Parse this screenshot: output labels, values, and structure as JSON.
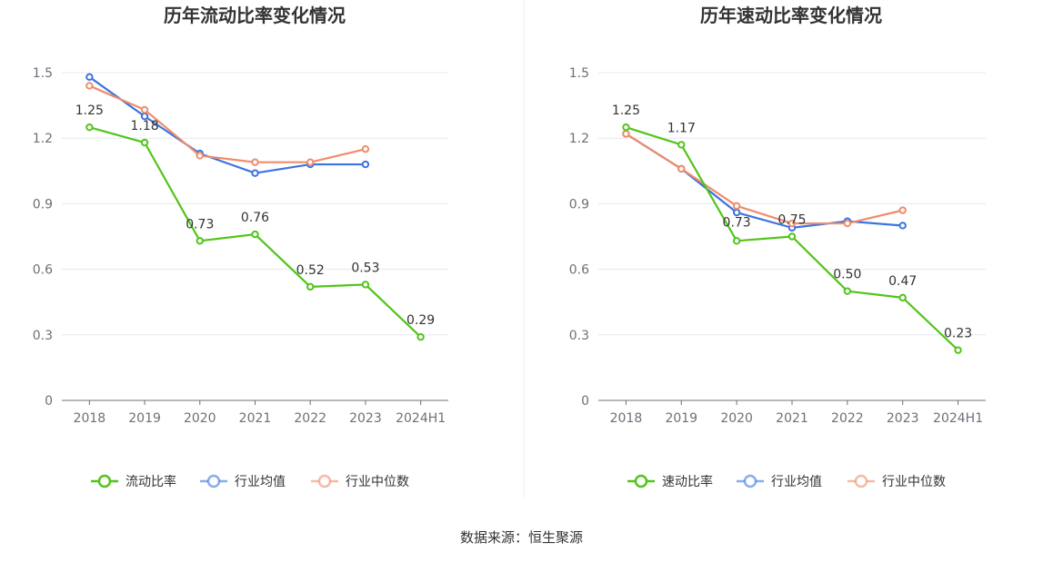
{
  "colors": {
    "company": "#52c41a",
    "industry_avg": "#3b74e0",
    "industry_median": "#f08c6a",
    "grid": "#e6e8f0",
    "axis": "#6e7079",
    "divider": "#eeeeee"
  },
  "source_text": "数据来源：恒生聚源",
  "chart_data": [
    {
      "type": "line",
      "title": "历年流动比率变化情况",
      "categories": [
        "2018",
        "2019",
        "2020",
        "2021",
        "2022",
        "2023",
        "2024H1"
      ],
      "ylim": [
        0,
        1.5
      ],
      "yticks": [
        "0",
        "0.3",
        "0.6",
        "0.9",
        "1.2",
        "1.5"
      ],
      "grid": true,
      "legend_position": "bottom",
      "series": [
        {
          "name": "流动比率",
          "key": "company",
          "values": [
            1.25,
            1.18,
            0.73,
            0.76,
            0.52,
            0.53,
            0.29
          ],
          "labels": [
            "1.25",
            "1.18",
            "0.73",
            "0.76",
            "0.52",
            "0.53",
            "0.29"
          ]
        },
        {
          "name": "行业均值",
          "key": "industry_avg",
          "values": [
            1.48,
            1.3,
            1.13,
            1.04,
            1.08,
            1.08,
            null
          ]
        },
        {
          "name": "行业中位数",
          "key": "industry_median",
          "values": [
            1.44,
            1.33,
            1.12,
            1.09,
            1.09,
            1.15,
            null
          ]
        }
      ]
    },
    {
      "type": "line",
      "title": "历年速动比率变化情况",
      "categories": [
        "2018",
        "2019",
        "2020",
        "2021",
        "2022",
        "2023",
        "2024H1"
      ],
      "ylim": [
        0,
        1.5
      ],
      "yticks": [
        "0",
        "0.3",
        "0.6",
        "0.9",
        "1.2",
        "1.5"
      ],
      "grid": true,
      "legend_position": "bottom",
      "series": [
        {
          "name": "速动比率",
          "key": "company",
          "values": [
            1.25,
            1.17,
            0.73,
            0.75,
            0.5,
            0.47,
            0.23
          ],
          "labels": [
            "1.25",
            "1.17",
            "0.73",
            "0.75",
            "0.50",
            "0.47",
            "0.23"
          ]
        },
        {
          "name": "行业均值",
          "key": "industry_avg",
          "values": [
            1.22,
            1.06,
            0.86,
            0.79,
            0.82,
            0.8,
            null
          ]
        },
        {
          "name": "行业中位数",
          "key": "industry_median",
          "values": [
            1.22,
            1.06,
            0.89,
            0.81,
            0.81,
            0.87,
            null
          ]
        }
      ]
    }
  ]
}
